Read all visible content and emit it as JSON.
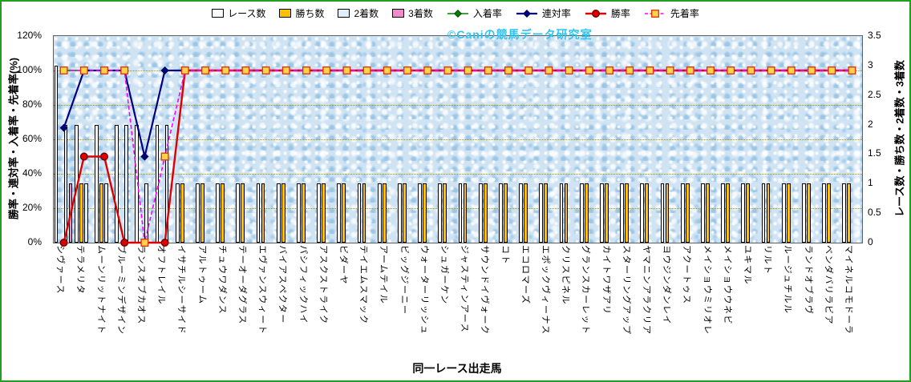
{
  "watermark": "©Caniの競馬データ研究室",
  "chart_data": {
    "type": "bar",
    "combo": "bar+line",
    "x_axis_title": "同一レース出走馬",
    "y_left_title": "勝率・連対率・入着率・先着率(%)",
    "y_right_title": "レース数・勝ち数・2着数・3着数",
    "y_left_ticks": [
      "0%",
      "20%",
      "40%",
      "60%",
      "80%",
      "100%",
      "120%"
    ],
    "y_left_max": 120,
    "y_right_ticks": [
      "0",
      "0.5",
      "1",
      "1.5",
      "2",
      "2.5",
      "3",
      "3.5"
    ],
    "y_right_max": 3.5,
    "grid": true,
    "legend_position": "top",
    "plot_background": "#cfe3f3",
    "categories": [
      "シヴァース",
      "テラメリタ",
      "ムーンリットナイト",
      "ブルーミンデザイン",
      "ランスオブカオス",
      "オフトレイル",
      "イサチルシーサイド",
      "アルトゥーム",
      "チュウワダンス",
      "テーオーダグラス",
      "エヴァンスウィート",
      "バイアスペクター",
      "パシフィックハイ",
      "アスクストライク",
      "ビダーヤ",
      "テイエムスマック",
      "アームテイル",
      "ビッグジーニー",
      "ウォーターリッシュ",
      "シュガーケン",
      "ジャスティンアース",
      "サウンドイヴォーク",
      "コト",
      "エコロマーズ",
      "エポックヴィーナス",
      "クリスピネル",
      "グランスカーレット",
      "カイトワザアリ",
      "スターリングアップ",
      "ヤマニンアラクリア",
      "ヨウジンダンレイ",
      "アクートゥス",
      "メイショウミリオレ",
      "メイショウウネビ",
      "ユキマル",
      "リルト",
      "ルージュチルル",
      "ランドオブラヴ",
      "ベンダバリラビア",
      "マイネルコモドーラ"
    ],
    "bar_series": [
      {
        "key": "races",
        "name": "レース数",
        "color": "#FFFFFF",
        "values": [
          3,
          2,
          2,
          2,
          2,
          2,
          1,
          1,
          1,
          1,
          1,
          1,
          1,
          1,
          1,
          1,
          1,
          1,
          1,
          1,
          1,
          1,
          1,
          1,
          1,
          1,
          1,
          1,
          1,
          1,
          1,
          1,
          1,
          1,
          1,
          1,
          1,
          1,
          1,
          1
        ]
      },
      {
        "key": "wins",
        "name": "勝ち数",
        "color": "#FFC000",
        "values": [
          0,
          1,
          1,
          0,
          0,
          0,
          1,
          1,
          1,
          1,
          1,
          1,
          1,
          1,
          1,
          1,
          1,
          1,
          1,
          1,
          1,
          1,
          1,
          1,
          1,
          1,
          1,
          1,
          1,
          1,
          1,
          1,
          1,
          1,
          1,
          1,
          1,
          1,
          1,
          1
        ]
      },
      {
        "key": "seconds",
        "name": "2着数",
        "color": "#E0F0FA",
        "values": [
          2,
          1,
          1,
          2,
          1,
          2,
          0,
          0,
          0,
          0,
          0,
          0,
          0,
          0,
          0,
          0,
          0,
          0,
          0,
          0,
          0,
          0,
          0,
          0,
          0,
          0,
          0,
          0,
          0,
          0,
          0,
          0,
          0,
          0,
          0,
          0,
          0,
          0,
          0,
          0
        ]
      },
      {
        "key": "thirds",
        "name": "3着数",
        "color": "#EE8CCB",
        "values": [
          1,
          0,
          0,
          0,
          0,
          0,
          0,
          0,
          0,
          0,
          0,
          0,
          0,
          0,
          0,
          0,
          0,
          0,
          0,
          0,
          0,
          0,
          0,
          0,
          0,
          0,
          0,
          0,
          0,
          0,
          0,
          0,
          0,
          0,
          0,
          0,
          0,
          0,
          0,
          0
        ]
      }
    ],
    "line_series": [
      {
        "key": "place-rate",
        "name": "入着率",
        "color": "#008000",
        "marker": "diamond",
        "marker_fill": "#008000",
        "marker_border": "#004000",
        "dash": false,
        "values": [
          100,
          100,
          100,
          100,
          50,
          100,
          100,
          100,
          100,
          100,
          100,
          100,
          100,
          100,
          100,
          100,
          100,
          100,
          100,
          100,
          100,
          100,
          100,
          100,
          100,
          100,
          100,
          100,
          100,
          100,
          100,
          100,
          100,
          100,
          100,
          100,
          100,
          100,
          100,
          100
        ]
      },
      {
        "key": "quinella-rate",
        "name": "連対率",
        "color": "#000080",
        "marker": "diamond",
        "marker_fill": "#000080",
        "marker_border": "#000050",
        "dash": false,
        "values": [
          66.7,
          100,
          100,
          100,
          50,
          100,
          100,
          100,
          100,
          100,
          100,
          100,
          100,
          100,
          100,
          100,
          100,
          100,
          100,
          100,
          100,
          100,
          100,
          100,
          100,
          100,
          100,
          100,
          100,
          100,
          100,
          100,
          100,
          100,
          100,
          100,
          100,
          100,
          100,
          100
        ]
      },
      {
        "key": "win-rate",
        "name": "勝率",
        "color": "#DC0000",
        "marker": "circle",
        "marker_fill": "#E00000",
        "marker_border": "#600000",
        "dash": false,
        "values": [
          0,
          50,
          50,
          0,
          0,
          0,
          100,
          100,
          100,
          100,
          100,
          100,
          100,
          100,
          100,
          100,
          100,
          100,
          100,
          100,
          100,
          100,
          100,
          100,
          100,
          100,
          100,
          100,
          100,
          100,
          100,
          100,
          100,
          100,
          100,
          100,
          100,
          100,
          100,
          100
        ]
      },
      {
        "key": "first-rate",
        "name": "先着率",
        "color": "#FF00FF",
        "marker": "square",
        "marker_fill": "#FFD24D",
        "marker_border": "#E03000",
        "dash": true,
        "values": [
          100,
          100,
          100,
          100,
          0,
          50,
          100,
          100,
          100,
          100,
          100,
          100,
          100,
          100,
          100,
          100,
          100,
          100,
          100,
          100,
          100,
          100,
          100,
          100,
          100,
          100,
          100,
          100,
          100,
          100,
          100,
          100,
          100,
          100,
          100,
          100,
          100,
          100,
          100,
          100
        ]
      }
    ]
  }
}
